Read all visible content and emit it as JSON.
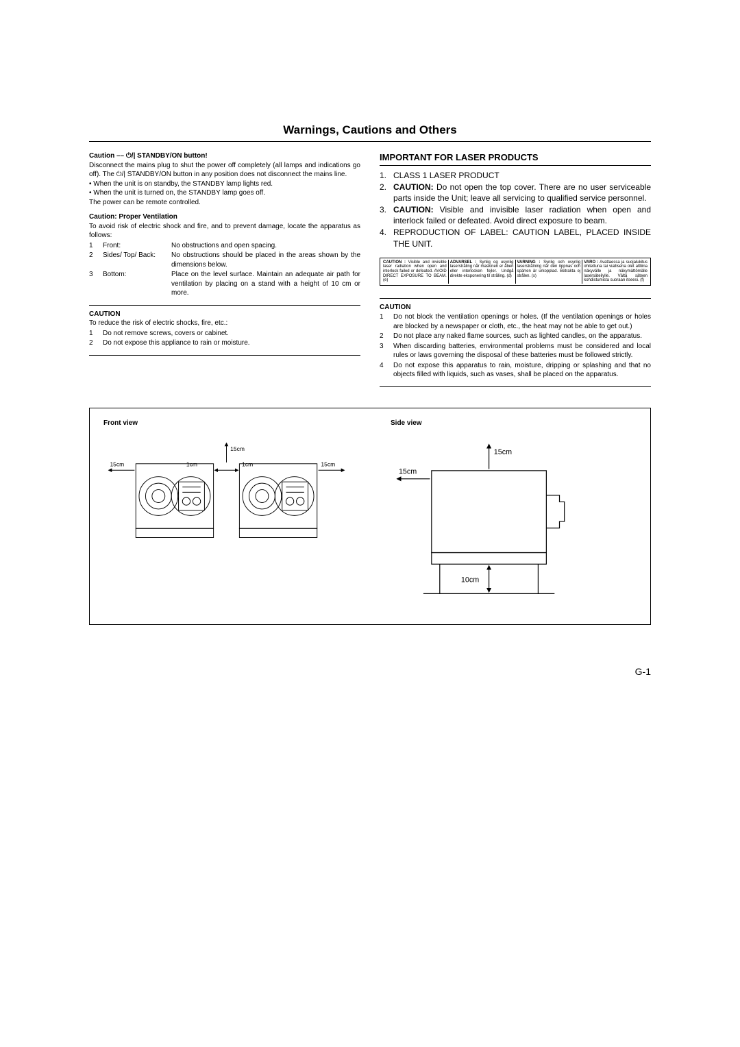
{
  "title": "Warnings, Cautions and Others",
  "left": {
    "caution_btn_heading": "Caution –– ⏻/| STANDBY/ON button!",
    "caution_btn_p1": "Disconnect the mains plug to shut the power off completely (all lamps and indications go off). The ⏻/| STANDBY/ON button in any position does not disconnect the mains line.",
    "caution_btn_b1": "• When the unit is on standby, the STANDBY lamp lights red.",
    "caution_btn_b2": "• When the unit is turned on, the STANDBY lamp goes off.",
    "caution_btn_p2": "The power can be remote controlled.",
    "vent_heading": "Caution: Proper Ventilation",
    "vent_p": "To avoid risk of electric shock and fire, and to prevent damage, locate the apparatus as follows:",
    "vent_rows": [
      {
        "n": "1",
        "k": "Front:",
        "v": "No obstructions and open spacing."
      },
      {
        "n": "2",
        "k": "Sides/ Top/ Back:",
        "v": "No obstructions should be placed in the areas shown by the dimensions below."
      },
      {
        "n": "3",
        "k": "Bottom:",
        "v": "Place on the level surface. Maintain an adequate air path for ventilation by placing on a stand with a height of 10 cm or more."
      }
    ],
    "caution2_heading": "CAUTION",
    "caution2_p": "To reduce the risk of electric shocks, fire, etc.:",
    "caution2_items": [
      {
        "n": "1",
        "t": "Do not remove screws, covers or cabinet."
      },
      {
        "n": "2",
        "t": "Do not expose this appliance to rain or moisture."
      }
    ]
  },
  "right": {
    "laser_heading": "IMPORTANT FOR LASER PRODUCTS",
    "laser_items": [
      {
        "n": "1.",
        "t": "CLASS 1 LASER PRODUCT"
      },
      {
        "n": "2.",
        "t": "<b>CAUTION:</b> Do not open the top cover. There are no user serviceable parts inside the Unit; leave all servicing to qualified service personnel."
      },
      {
        "n": "3.",
        "t": "<b>CAUTION:</b> Visible and invisible laser radiation when open and interlock failed or defeated. Avoid direct exposure to beam."
      },
      {
        "n": "4.",
        "t": "REPRODUCTION OF LABEL: CAUTION LABEL, PLACED INSIDE THE UNIT."
      }
    ],
    "label_cells": [
      {
        "h": "CAUTION :",
        "t": "Visible and invisible laser radiation when open and interlock failed or defeated. AVOID DIRECT EXPOSURE TO BEAM. (e)"
      },
      {
        "h": "ADVARSEL :",
        "t": "Synlig og usynlig laserstråling når maskinen er åben eller interlocken fejler. Undgå direkte eksponering til stråling. (d)"
      },
      {
        "h": "VARNING :",
        "t": "Synlig och osynlig laserstrålning när den öppnas och spärren är urkopplad. Betrakta ej strålen. (s)"
      },
      {
        "h": "VARO :",
        "t": "Avattaessa ja suojalukitus ohitettuna tai viallisena olet alttiina näkyvälle ja näkymättömälle lasersäteilylle. Vältä säteen kohdistumista suoraan itseesi. (f)"
      }
    ],
    "caution3_heading": "CAUTION",
    "caution3_items": [
      {
        "n": "1",
        "t": "Do not block the ventilation openings or holes. (If the ventilation openings or holes are blocked by a newspaper or cloth, etc., the heat may not be able to get out.)"
      },
      {
        "n": "2",
        "t": "Do not place any naked flame sources, such as lighted candles, on the apparatus."
      },
      {
        "n": "3",
        "t": "When discarding batteries, environmental problems must be considered and local rules or laws governing the disposal of these batteries must be followed strictly."
      },
      {
        "n": "4",
        "t": "Do not expose this apparatus to rain, moisture, dripping or splashing and that no objects filled with liquids, such as vases, shall be placed on the apparatus."
      }
    ]
  },
  "diagram": {
    "front_title": "Front view",
    "side_title": "Side view",
    "dims": {
      "d15": "15cm",
      "d1": "1cm",
      "d10": "10cm"
    }
  },
  "footer": "G-1"
}
